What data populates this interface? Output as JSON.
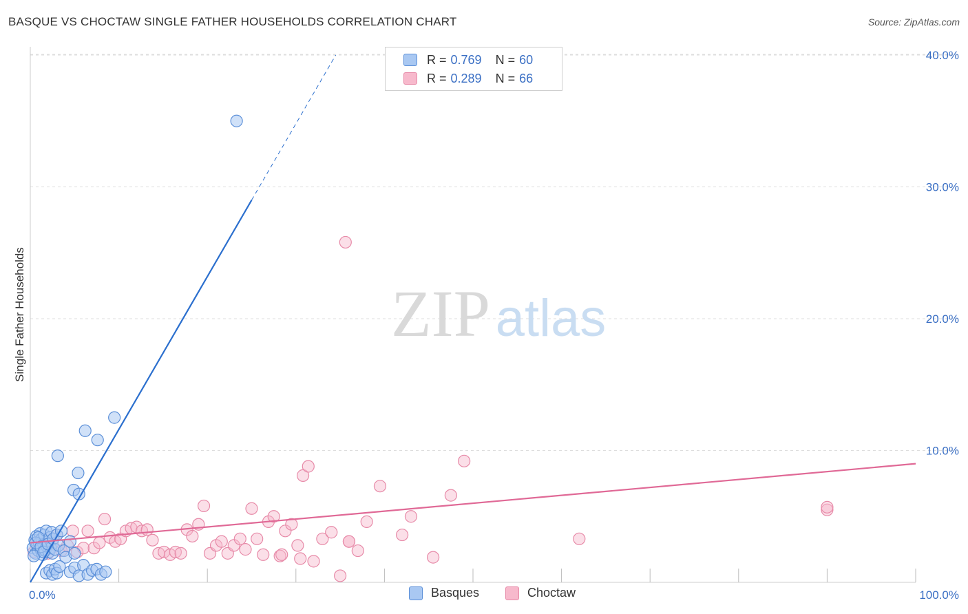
{
  "title": "BASQUE VS CHOCTAW SINGLE FATHER HOUSEHOLDS CORRELATION CHART",
  "source": "Source: ZipAtlas.com",
  "watermark": {
    "zip": "ZIP",
    "atlas": "atlas"
  },
  "legend": [
    {
      "r_label": "R =",
      "r_value": "0.769",
      "n_label": "N =",
      "n_value": "60"
    },
    {
      "r_label": "R =",
      "r_value": "0.289",
      "n_label": "N =",
      "n_value": "66"
    }
  ],
  "bottom_legend": [
    {
      "label": "Basques"
    },
    {
      "label": "Choctaw"
    }
  ],
  "colors": {
    "blue_fill": "#a9c8f2",
    "blue_stroke": "#5b8fd8",
    "blue_line": "#2b6fce",
    "pink_fill": "#f7b9cc",
    "pink_stroke": "#e78aa8",
    "pink_line": "#e06996",
    "axis_text": "#3a6fc4",
    "grid": "#dddddd"
  },
  "chart_data": {
    "type": "scatter",
    "title": "BASQUE VS CHOCTAW SINGLE FATHER HOUSEHOLDS CORRELATION CHART",
    "xlabel": "",
    "ylabel": "Single Father Households",
    "xlim": [
      0,
      100
    ],
    "ylim": [
      0,
      40
    ],
    "x_tick_labels": [
      "0.0%",
      "100.0%"
    ],
    "y_ticks": [
      10,
      20,
      30,
      40
    ],
    "y_tick_labels": [
      "10.0%",
      "20.0%",
      "30.0%",
      "40.0%"
    ],
    "grid": true,
    "series": [
      {
        "name": "Basques",
        "r": 0.769,
        "n": 60,
        "trend": {
          "x0": 0,
          "y0": 0.0,
          "x_solid_end": 25.0,
          "y_solid_end": 29.0,
          "x1": 34.5,
          "y1": 40.0
        },
        "points": [
          [
            0.3,
            2.6
          ],
          [
            0.5,
            3.2
          ],
          [
            0.6,
            2.2
          ],
          [
            0.7,
            3.5
          ],
          [
            0.8,
            2.8
          ],
          [
            0.9,
            2.4
          ],
          [
            1.0,
            3.0
          ],
          [
            1.1,
            3.7
          ],
          [
            1.2,
            2.5
          ],
          [
            1.3,
            3.3
          ],
          [
            1.4,
            2.1
          ],
          [
            1.5,
            2.9
          ],
          [
            1.6,
            3.6
          ],
          [
            1.7,
            2.4
          ],
          [
            1.8,
            3.9
          ],
          [
            1.9,
            2.7
          ],
          [
            2.0,
            3.1
          ],
          [
            2.1,
            2.3
          ],
          [
            2.2,
            3.4
          ],
          [
            2.3,
            2.6
          ],
          [
            2.4,
            3.8
          ],
          [
            2.5,
            2.2
          ],
          [
            0.4,
            2.0
          ],
          [
            0.6,
            3.0
          ],
          [
            0.9,
            3.4
          ],
          [
            1.2,
            2.7
          ],
          [
            1.5,
            2.3
          ],
          [
            2.0,
            2.9
          ],
          [
            2.6,
            3.3
          ],
          [
            2.8,
            2.5
          ],
          [
            3.0,
            3.6
          ],
          [
            3.2,
            2.8
          ],
          [
            3.5,
            3.9
          ],
          [
            3.8,
            2.4
          ],
          [
            4.0,
            1.9
          ],
          [
            4.5,
            3.1
          ],
          [
            5.0,
            2.2
          ],
          [
            1.8,
            0.7
          ],
          [
            2.2,
            0.9
          ],
          [
            2.5,
            0.6
          ],
          [
            2.8,
            1.0
          ],
          [
            3.0,
            0.7
          ],
          [
            3.3,
            1.2
          ],
          [
            4.5,
            0.8
          ],
          [
            5.0,
            1.1
          ],
          [
            5.5,
            0.5
          ],
          [
            6.0,
            1.3
          ],
          [
            6.5,
            0.6
          ],
          [
            7.0,
            0.9
          ],
          [
            7.5,
            1.0
          ],
          [
            8.0,
            0.6
          ],
          [
            8.5,
            0.8
          ],
          [
            6.2,
            11.5
          ],
          [
            7.6,
            10.8
          ],
          [
            9.5,
            12.5
          ],
          [
            3.1,
            9.6
          ],
          [
            5.4,
            8.3
          ],
          [
            4.9,
            7.0
          ],
          [
            5.5,
            6.7
          ],
          [
            23.3,
            35.0
          ]
        ]
      },
      {
        "name": "Choctaw",
        "r": 0.289,
        "n": 66,
        "trend": {
          "x0": 0,
          "y0": 3.0,
          "x1": 100,
          "y1": 9.0
        },
        "points": [
          [
            0.4,
            2.3
          ],
          [
            0.8,
            3.0
          ],
          [
            1.2,
            2.6
          ],
          [
            1.6,
            3.3
          ],
          [
            2.0,
            2.2
          ],
          [
            2.5,
            2.9
          ],
          [
            3.0,
            3.6
          ],
          [
            3.5,
            2.4
          ],
          [
            4.2,
            2.8
          ],
          [
            4.8,
            3.9
          ],
          [
            5.3,
            2.3
          ],
          [
            6.0,
            2.6
          ],
          [
            6.5,
            3.9
          ],
          [
            7.2,
            2.6
          ],
          [
            7.8,
            3.0
          ],
          [
            8.4,
            4.8
          ],
          [
            9.0,
            3.4
          ],
          [
            9.6,
            3.1
          ],
          [
            10.2,
            3.3
          ],
          [
            10.8,
            3.9
          ],
          [
            11.4,
            4.1
          ],
          [
            12.0,
            4.2
          ],
          [
            12.6,
            3.9
          ],
          [
            13.2,
            4.0
          ],
          [
            13.8,
            3.2
          ],
          [
            14.5,
            2.2
          ],
          [
            15.1,
            2.3
          ],
          [
            15.8,
            2.1
          ],
          [
            16.4,
            2.3
          ],
          [
            17.0,
            2.2
          ],
          [
            17.7,
            4.0
          ],
          [
            18.3,
            3.5
          ],
          [
            19.0,
            4.4
          ],
          [
            19.6,
            5.8
          ],
          [
            20.3,
            2.2
          ],
          [
            21.0,
            2.8
          ],
          [
            21.6,
            3.1
          ],
          [
            22.3,
            2.2
          ],
          [
            23.0,
            2.8
          ],
          [
            23.7,
            3.3
          ],
          [
            24.3,
            2.5
          ],
          [
            25.0,
            5.6
          ],
          [
            25.6,
            3.3
          ],
          [
            26.3,
            2.1
          ],
          [
            26.9,
            4.6
          ],
          [
            27.5,
            5.0
          ],
          [
            28.2,
            2.0
          ],
          [
            28.8,
            3.9
          ],
          [
            29.5,
            4.4
          ],
          [
            30.2,
            2.8
          ],
          [
            30.8,
            8.1
          ],
          [
            31.4,
            8.8
          ],
          [
            32.0,
            1.6
          ],
          [
            33.0,
            3.3
          ],
          [
            34.0,
            3.8
          ],
          [
            35.0,
            0.5
          ],
          [
            36.0,
            3.1
          ],
          [
            37.0,
            2.4
          ],
          [
            38.0,
            4.6
          ],
          [
            39.5,
            7.3
          ],
          [
            42.0,
            3.6
          ],
          [
            43.0,
            5.0
          ],
          [
            47.5,
            6.6
          ],
          [
            49.0,
            9.2
          ],
          [
            45.5,
            1.9
          ],
          [
            35.6,
            25.8
          ]
        ]
      }
    ],
    "extra_choctaw_points": [
      [
        28.4,
        2.1
      ],
      [
        30.5,
        1.8
      ],
      [
        36.0,
        3.1
      ],
      [
        62.0,
        3.3
      ],
      [
        90.0,
        5.5
      ],
      [
        90.0,
        5.7
      ]
    ]
  }
}
